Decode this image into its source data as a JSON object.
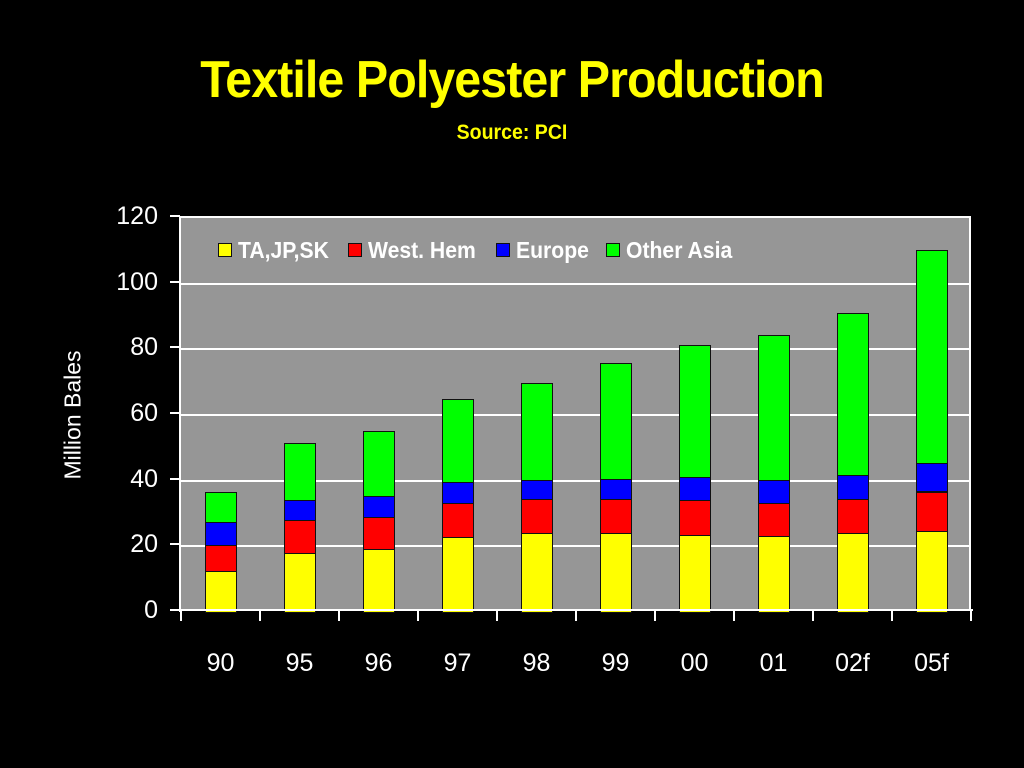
{
  "slide": {
    "title": "Textile Polyester Production",
    "subtitle": "Source: PCI",
    "background": "#000000",
    "title_color": "#ffff00"
  },
  "chart_data": {
    "type": "bar",
    "stacked": true,
    "title": "Textile Polyester Production",
    "subtitle": "Source: PCI",
    "xlabel": "",
    "ylabel": "Million Bales",
    "ylim": [
      0,
      120
    ],
    "yticks": [
      0,
      20,
      40,
      60,
      80,
      100,
      120
    ],
    "ytick_labels": [
      "0",
      "20",
      "40",
      "60",
      "80",
      "100",
      "120"
    ],
    "grid": true,
    "legend_position": "top-inside",
    "plot_background": "#969696",
    "categories": [
      "90",
      "95",
      "96",
      "97",
      "98",
      "99",
      "00",
      "01",
      "02f",
      "05f"
    ],
    "series": [
      {
        "name": "TA,JP,SK",
        "color": "#ffff00",
        "values": [
          12.4,
          18.0,
          19.2,
          22.7,
          24.2,
          24.1,
          23.5,
          23.1,
          24.1,
          24.8
        ]
      },
      {
        "name": "West. Hem",
        "color": "#ff0000",
        "values": [
          8.0,
          10.0,
          9.8,
          10.5,
          10.2,
          10.3,
          10.6,
          10.2,
          10.2,
          11.9
        ]
      },
      {
        "name": "Europe",
        "color": "#0000ff",
        "values": [
          6.9,
          6.2,
          6.4,
          6.4,
          5.8,
          6.1,
          7.0,
          6.9,
          7.5,
          8.7
        ]
      },
      {
        "name": "Other Asia",
        "color": "#00ff00",
        "values": [
          9.2,
          17.2,
          19.7,
          25.4,
          29.4,
          35.2,
          40.3,
          44.2,
          49.2,
          64.9
        ]
      }
    ],
    "totals": [
      36.5,
      51.4,
      55.1,
      65.0,
      69.6,
      75.7,
      81.4,
      84.4,
      91.0,
      110.3
    ]
  }
}
